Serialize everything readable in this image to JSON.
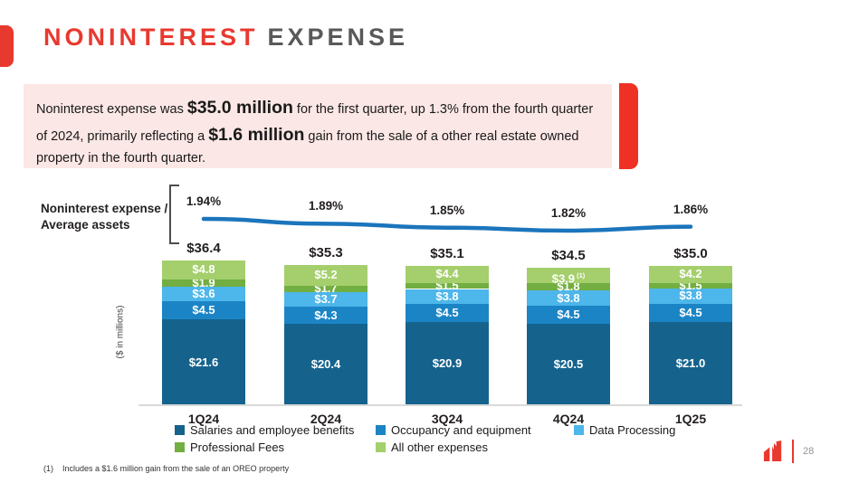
{
  "title": {
    "accent": "NONINTEREST",
    "rest": "EXPENSE"
  },
  "highlight_box": {
    "segments": [
      {
        "text": "Noninterest expense was ",
        "bold": false
      },
      {
        "text": "$35.0 million",
        "bold": true
      },
      {
        "text": " for the first quarter, up 1.3% from the fourth quarter of 2024, primarily reflecting a ",
        "bold": false
      },
      {
        "text": "$1.6 million",
        "bold": true
      },
      {
        "text": " gain from the sale of a other real estate owned property in the fourth quarter.",
        "bold": false
      }
    ]
  },
  "chart_data": {
    "type": "bar",
    "subtype": "stacked-bars-with-percentage-line",
    "categories": [
      "1Q24",
      "2Q24",
      "3Q24",
      "4Q24",
      "1Q25"
    ],
    "series": [
      {
        "name": "Salaries and employee benefits",
        "color": "#15638d",
        "values": [
          21.6,
          20.4,
          20.9,
          20.5,
          21.0
        ]
      },
      {
        "name": "Occupancy and equipment",
        "color": "#1b84c5",
        "values": [
          4.5,
          4.3,
          4.5,
          4.5,
          4.5
        ]
      },
      {
        "name": "Data Processing",
        "color": "#4db6ea",
        "values": [
          3.6,
          3.7,
          3.8,
          3.8,
          3.8
        ]
      },
      {
        "name": "Professional Fees",
        "color": "#72ae41",
        "values": [
          1.9,
          1.7,
          1.5,
          1.8,
          1.5
        ]
      },
      {
        "name": "All other expenses",
        "color": "#a4cf6c",
        "values": [
          4.8,
          5.2,
          4.4,
          3.9,
          4.2
        ]
      }
    ],
    "totals": [
      36.4,
      35.3,
      35.1,
      34.5,
      35.0
    ],
    "total_labels": [
      "$36.4",
      "$35.3",
      "$35.1",
      "$34.5",
      "$35.0"
    ],
    "line_series": {
      "name": "Noninterest expense / Average assets",
      "color": "#1b75bc",
      "values": [
        1.94,
        1.89,
        1.85,
        1.82,
        1.86
      ],
      "labels": [
        "1.94%",
        "1.89%",
        "1.85%",
        "1.82%",
        "1.86%"
      ]
    },
    "footnote_marker": {
      "series_index": 4,
      "category_index": 3,
      "text": "(1)"
    },
    "ylabel": "($ in millions)",
    "row_label": {
      "line1": "Noninterest expense /",
      "line2": "Average assets"
    },
    "value_prefix": "$",
    "legend_position": "bottom",
    "grid": false
  },
  "legend": {
    "items": [
      {
        "label": "Salaries and employee benefits",
        "color": "#15638d"
      },
      {
        "label": "Occupancy and equipment",
        "color": "#1b84c5"
      },
      {
        "label": "Data Processing",
        "color": "#4db6ea"
      },
      {
        "label": "Professional Fees",
        "color": "#72ae41"
      },
      {
        "label": "All other expenses",
        "color": "#a4cf6c"
      }
    ]
  },
  "footnote": "(1)    Includes a $1.6 million gain from the sale of an OREO property",
  "page_number": "28",
  "colors": {
    "accent_red": "#e8392f",
    "callout_bar_red": "#ee3124",
    "pink_bg": "#fbe7e5",
    "text_dark": "#231f20",
    "title_gray": "#58595b",
    "axis_gray": "#d9d9d9",
    "line_blue": "#1b75bc"
  }
}
